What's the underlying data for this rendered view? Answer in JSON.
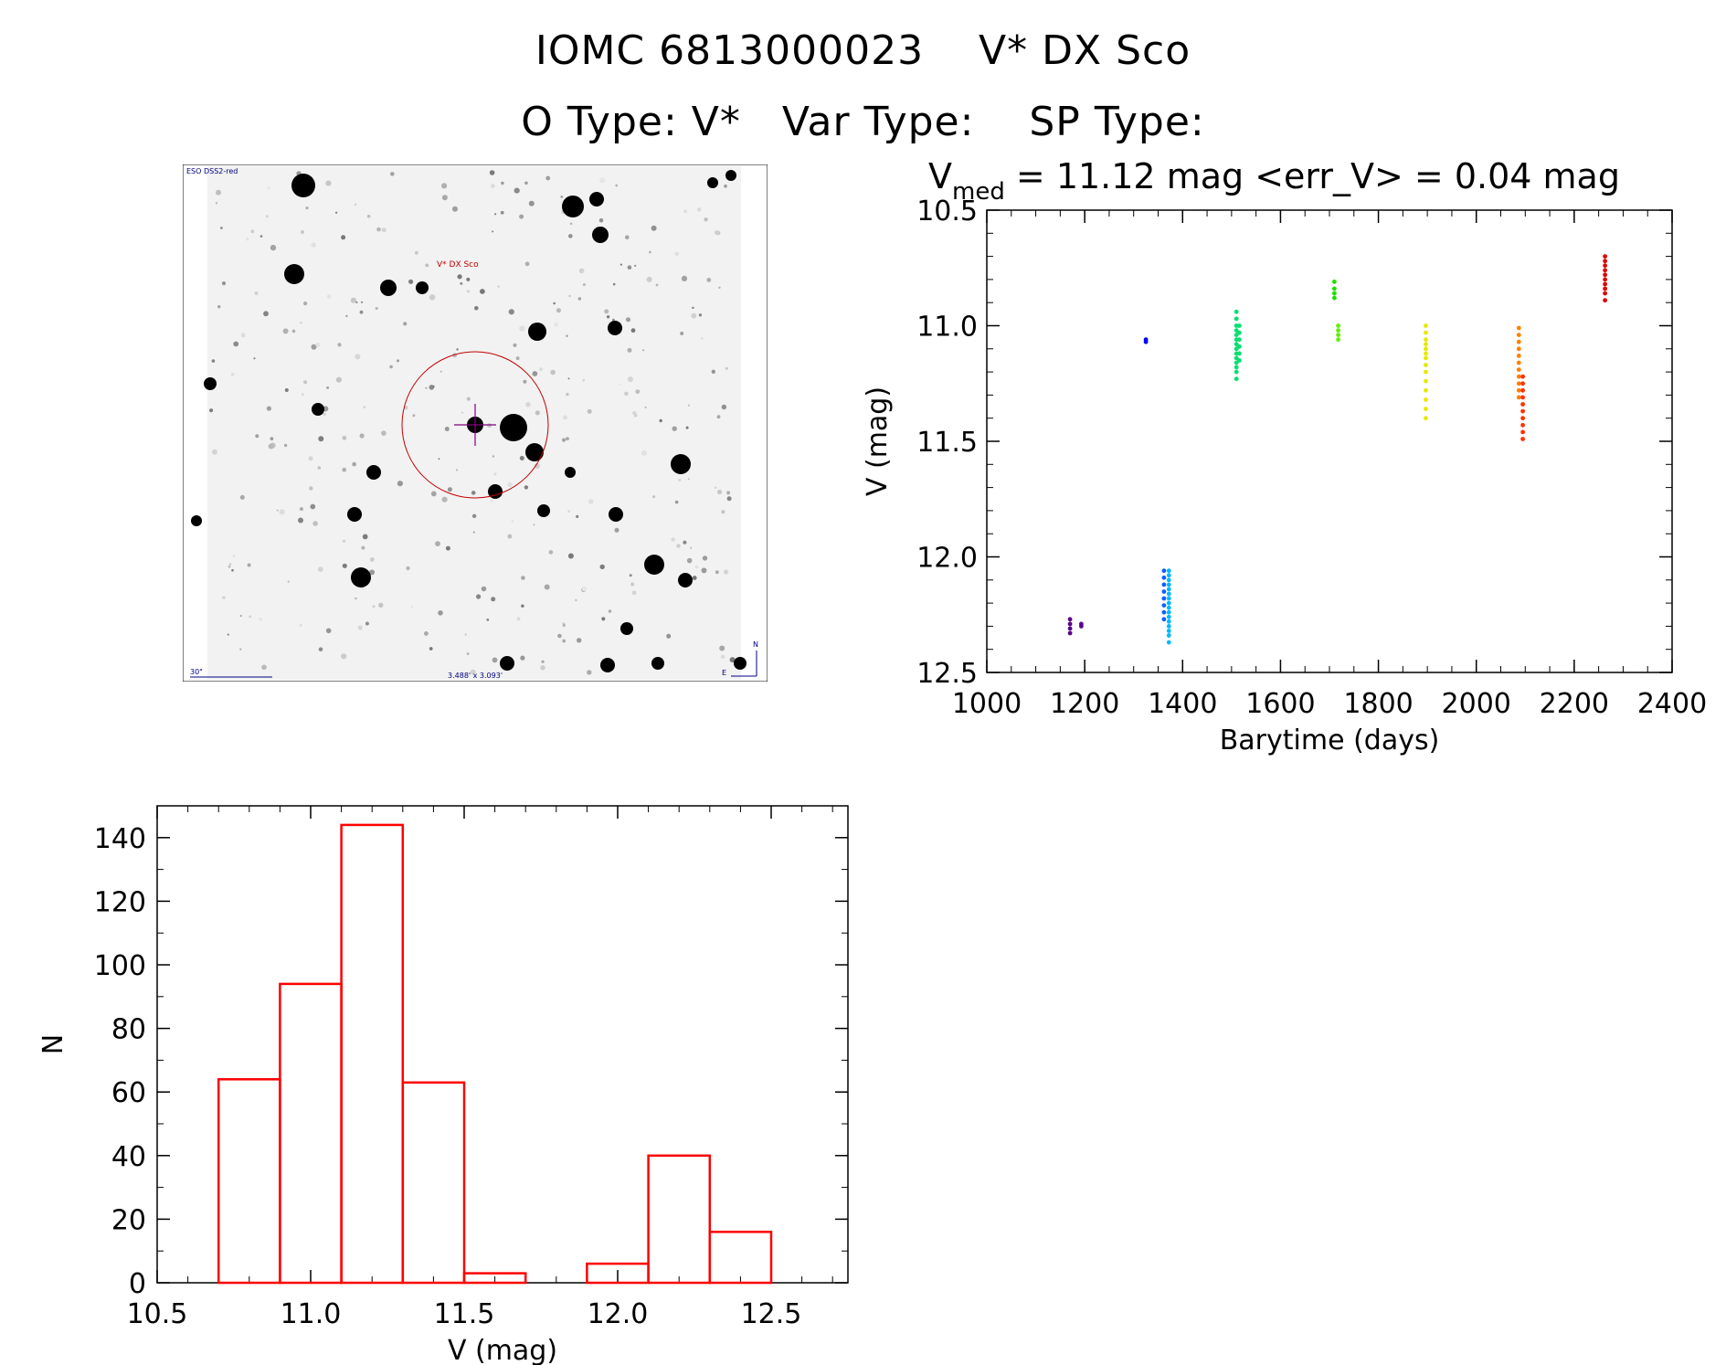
{
  "header": {
    "line1": "IOMC 6813000023    V* DX Sco",
    "line2": "O Type: V*   Var Type:    SP Type:"
  },
  "sky_image": {
    "survey_label": "ESO DSS2-red",
    "target_label": "V* DX Sco",
    "scale_label": "30\"",
    "field_label": "3.488' x 3.093'",
    "north_label": "N",
    "east_label": "E",
    "colors": {
      "background": "#f2f2f2",
      "stars": "#000000",
      "circle": "#c00000",
      "crosshair": "#800080",
      "annotation": "#000080"
    }
  },
  "chart_data": [
    {
      "type": "scatter",
      "title": {
        "v_label": "V",
        "v_subscript": "med",
        "rest": " = 11.12 mag <err_V> = 0.04 mag"
      },
      "xlabel": "Barytime (days)",
      "ylabel": "V (mag)",
      "xlim": [
        1000,
        2400
      ],
      "ylim": [
        12.5,
        10.5
      ],
      "y_inverted": true,
      "xticks": [
        1000,
        1200,
        1400,
        1600,
        1800,
        2000,
        2200,
        2400
      ],
      "yticks": [
        10.5,
        11.0,
        11.5,
        12.0,
        12.5
      ],
      "ytick_labels": [
        "10.5",
        "11.0",
        "11.5",
        "12.0",
        "12.5"
      ],
      "series": [
        {
          "color": "#5a008a",
          "x": 1170,
          "values": [
            12.27,
            12.29,
            12.31,
            12.33
          ]
        },
        {
          "color": "#5a008a",
          "x": 1193,
          "values": [
            12.29,
            12.3
          ]
        },
        {
          "color": "#0000ff",
          "x": 1325,
          "values": [
            11.06,
            11.07
          ]
        },
        {
          "color": "#1060ff",
          "x": 1362,
          "values": [
            12.06,
            12.09,
            12.12,
            12.15,
            12.18,
            12.21,
            12.24,
            12.27
          ]
        },
        {
          "color": "#00b8ff",
          "x": 1372,
          "values": [
            12.06,
            12.08,
            12.1,
            12.12,
            12.14,
            12.16,
            12.18,
            12.2,
            12.22,
            12.24,
            12.26,
            12.28,
            12.3,
            12.32,
            12.34,
            12.37
          ]
        },
        {
          "color": "#00e070",
          "x": 1510,
          "values": [
            10.94,
            10.97,
            11.0,
            11.02,
            11.04,
            11.06,
            11.08,
            11.1,
            11.12,
            11.14,
            11.16,
            11.18,
            11.2,
            11.23
          ]
        },
        {
          "color": "#00e070",
          "x": 1516,
          "values": [
            11.0,
            11.03,
            11.06,
            11.09,
            11.12,
            11.15
          ]
        },
        {
          "color": "#20e000",
          "x": 1710,
          "values": [
            10.81,
            10.84,
            10.86,
            10.88
          ]
        },
        {
          "color": "#60f000",
          "x": 1718,
          "values": [
            11.0,
            11.02,
            11.04,
            11.06
          ]
        },
        {
          "color": "#e8e800",
          "x": 1897,
          "values": [
            11.0,
            11.03,
            11.06,
            11.08,
            11.1,
            11.12,
            11.14,
            11.17,
            11.2,
            11.24,
            11.28,
            11.32,
            11.36,
            11.4
          ]
        },
        {
          "color": "#ff8000",
          "x": 2087,
          "values": [
            11.01,
            11.04,
            11.07,
            11.1,
            11.13,
            11.16,
            11.19,
            11.22,
            11.25,
            11.28,
            11.31
          ]
        },
        {
          "color": "#ff3000",
          "x": 2095,
          "values": [
            11.22,
            11.25,
            11.28,
            11.31,
            11.34,
            11.37,
            11.4,
            11.43,
            11.46,
            11.49
          ]
        },
        {
          "color": "#e00000",
          "x": 2263,
          "values": [
            10.7,
            10.72,
            10.74,
            10.76,
            10.78,
            10.8,
            10.82,
            10.84,
            10.86,
            10.89
          ]
        }
      ]
    },
    {
      "type": "bar",
      "subtype": "histogram",
      "xlabel": "V (mag)",
      "ylabel": "N",
      "xlim": [
        10.5,
        12.75
      ],
      "ylim": [
        0,
        150
      ],
      "xticks": [
        10.5,
        11.0,
        11.5,
        12.0,
        12.5
      ],
      "xtick_labels": [
        "10.5",
        "11.0",
        "11.5",
        "12.0",
        "12.5"
      ],
      "yticks": [
        0,
        20,
        40,
        60,
        80,
        100,
        120,
        140
      ],
      "bin_edges": [
        10.7,
        10.9,
        11.1,
        11.3,
        11.5,
        11.7,
        11.9,
        12.1,
        12.3,
        12.5
      ],
      "values": [
        64,
        94,
        144,
        63,
        3,
        0,
        6,
        40,
        16
      ],
      "color": "#ff0000"
    }
  ]
}
